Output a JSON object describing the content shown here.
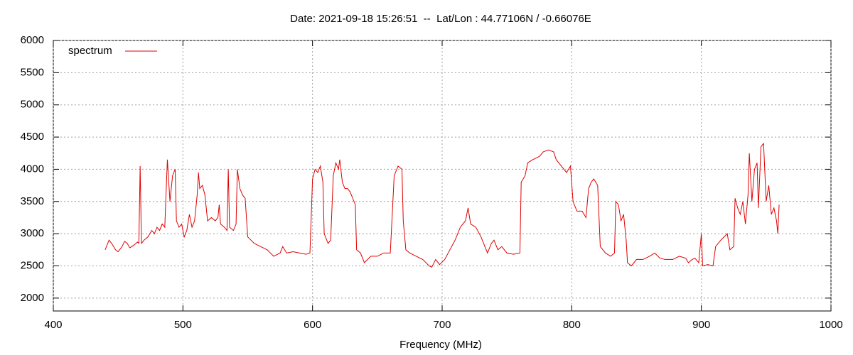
{
  "chart_data": {
    "type": "line",
    "title": "Date: 2021-09-18 15:26:51  --  Lat/Lon : 44.77106N / -0.66076E",
    "x_label": "Frequency (MHz)",
    "xlim": [
      400,
      1000
    ],
    "xticks": [
      400,
      500,
      600,
      700,
      800,
      900,
      1000
    ],
    "ylim": [
      1800,
      6000
    ],
    "yticks": [
      2000,
      2500,
      3000,
      3500,
      4000,
      4500,
      5000,
      5500,
      6000
    ],
    "grid": true,
    "legend": "top-left",
    "x": [
      440,
      443,
      445,
      448,
      450,
      453,
      455,
      457,
      459,
      462,
      465,
      466,
      467,
      468,
      470,
      473,
      476,
      478,
      480,
      482,
      484,
      486,
      488,
      490,
      492,
      494,
      495,
      497,
      499,
      501,
      503,
      505,
      507,
      509,
      511,
      512,
      513,
      515,
      517,
      518,
      519,
      522,
      525,
      527,
      528,
      529,
      532,
      534,
      535,
      536,
      539,
      541,
      542,
      544,
      546,
      548,
      550,
      555,
      560,
      565,
      570,
      575,
      577,
      580,
      585,
      590,
      595,
      598,
      600,
      602,
      604,
      606,
      608,
      609,
      612,
      614,
      616,
      618,
      620,
      621,
      623,
      625,
      627,
      629,
      631,
      633,
      634,
      637,
      640,
      645,
      650,
      655,
      660,
      663,
      666,
      669,
      670,
      672,
      675,
      680,
      685,
      690,
      692,
      695,
      698,
      702,
      706,
      710,
      714,
      718,
      720,
      722,
      726,
      730,
      733,
      735,
      738,
      740,
      743,
      746,
      750,
      755,
      760,
      761,
      764,
      766,
      770,
      775,
      778,
      782,
      786,
      788,
      792,
      796,
      799,
      801,
      804,
      808,
      811,
      813,
      815,
      817,
      820,
      822,
      826,
      830,
      833,
      834,
      836,
      838,
      840,
      842,
      843,
      846,
      850,
      855,
      860,
      864,
      868,
      872,
      878,
      883,
      888,
      890,
      893,
      895,
      898,
      900,
      901,
      905,
      909,
      911,
      915,
      920,
      922,
      925,
      926,
      928,
      930,
      932,
      934,
      936,
      937,
      939,
      941,
      943,
      944,
      946,
      948,
      950,
      952,
      954,
      956,
      958,
      959,
      960
    ],
    "series": [
      {
        "name": "spectrum",
        "color": "#e00000",
        "values": [
          2750,
          2900,
          2850,
          2750,
          2720,
          2800,
          2880,
          2850,
          2780,
          2820,
          2870,
          2850,
          4050,
          2850,
          2900,
          2950,
          3050,
          3000,
          3100,
          3050,
          3150,
          3100,
          4150,
          3500,
          3900,
          4000,
          3200,
          3100,
          3150,
          2950,
          3050,
          3300,
          3100,
          3200,
          3600,
          3950,
          3700,
          3750,
          3600,
          3400,
          3200,
          3250,
          3200,
          3250,
          3450,
          3150,
          3100,
          3050,
          4000,
          3100,
          3050,
          3150,
          4000,
          3700,
          3600,
          3550,
          2950,
          2850,
          2800,
          2750,
          2650,
          2700,
          2800,
          2700,
          2720,
          2700,
          2680,
          2700,
          3850,
          4000,
          3950,
          4050,
          3800,
          3000,
          2850,
          2900,
          3900,
          4100,
          4000,
          4150,
          3800,
          3700,
          3700,
          3650,
          3550,
          3450,
          2750,
          2700,
          2550,
          2650,
          2650,
          2700,
          2700,
          3900,
          4050,
          4000,
          3200,
          2750,
          2700,
          2650,
          2600,
          2500,
          2480,
          2600,
          2520,
          2600,
          2750,
          2900,
          3100,
          3200,
          3400,
          3150,
          3100,
          2950,
          2800,
          2700,
          2850,
          2900,
          2750,
          2800,
          2700,
          2680,
          2700,
          3800,
          3900,
          4100,
          4150,
          4200,
          4270,
          4300,
          4270,
          4150,
          4050,
          3950,
          4050,
          3500,
          3350,
          3350,
          3250,
          3700,
          3800,
          3850,
          3750,
          2800,
          2700,
          2650,
          2700,
          3500,
          3450,
          3200,
          3300,
          2900,
          2550,
          2500,
          2600,
          2600,
          2650,
          2700,
          2620,
          2600,
          2600,
          2650,
          2620,
          2550,
          2600,
          2620,
          2550,
          3000,
          2500,
          2520,
          2500,
          2800,
          2900,
          3000,
          2750,
          2800,
          3550,
          3400,
          3300,
          3500,
          3150,
          3600,
          4250,
          3500,
          4000,
          4100,
          3400,
          4350,
          4400,
          3500,
          3750,
          3300,
          3400,
          3200,
          3000,
          3450
        ]
      }
    ]
  }
}
